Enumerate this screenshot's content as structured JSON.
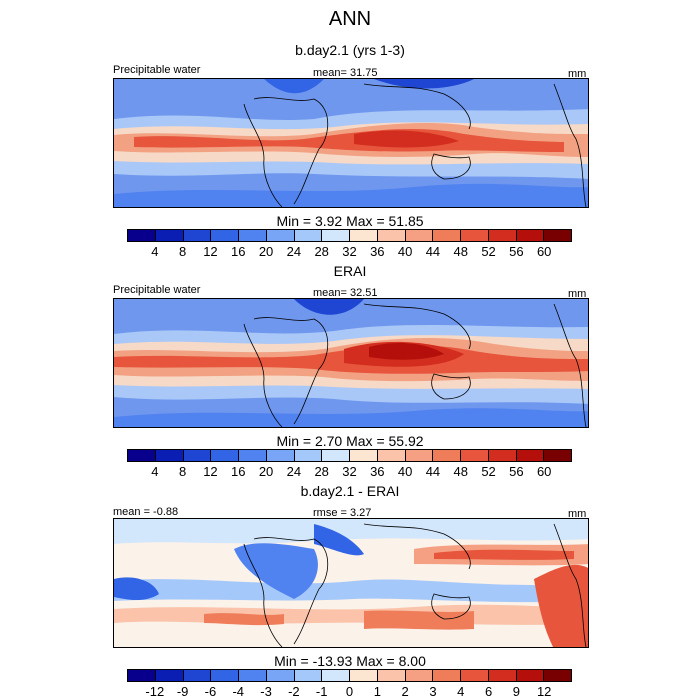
{
  "title": "ANN",
  "panels": [
    {
      "title": "b.day2.1 (yrs 1-3)",
      "left_label": "Precipitable water",
      "center_label": "mean=  31.75",
      "right_label": "mm",
      "stats": "Min =   3.92 Max =  51.85",
      "levels": [
        "4",
        "8",
        "12",
        "16",
        "20",
        "24",
        "28",
        "32",
        "36",
        "40",
        "44",
        "48",
        "52",
        "56",
        "60"
      ]
    },
    {
      "title": "ERAI",
      "left_label": "Precipitable water",
      "center_label": "mean=  32.51",
      "right_label": "mm",
      "stats": "Min =   2.70 Max =  55.92",
      "levels": [
        "4",
        "8",
        "12",
        "16",
        "20",
        "24",
        "28",
        "32",
        "36",
        "40",
        "44",
        "48",
        "52",
        "56",
        "60"
      ]
    },
    {
      "title": "b.day2.1 - ERAI",
      "left_label": "mean =  -0.88",
      "center_label": "rmse =   3.27",
      "right_label": "mm",
      "stats": "Min = -13.93 Max =   8.00",
      "levels": [
        "-12",
        "-9",
        "-6",
        "-4",
        "-3",
        "-2",
        "-1",
        "0",
        "1",
        "2",
        "3",
        "4",
        "6",
        "9",
        "12"
      ]
    }
  ],
  "colorbar_colors": [
    "#08008c",
    "#0a1eb4",
    "#1e46d2",
    "#3264e6",
    "#5082f0",
    "#78a5f5",
    "#a5c8fa",
    "#d2e6fc",
    "#fce6d2",
    "#fac3aa",
    "#f5a082",
    "#f07d5a",
    "#e6553c",
    "#d22d1e",
    "#b40f0a",
    "#780000"
  ]
}
